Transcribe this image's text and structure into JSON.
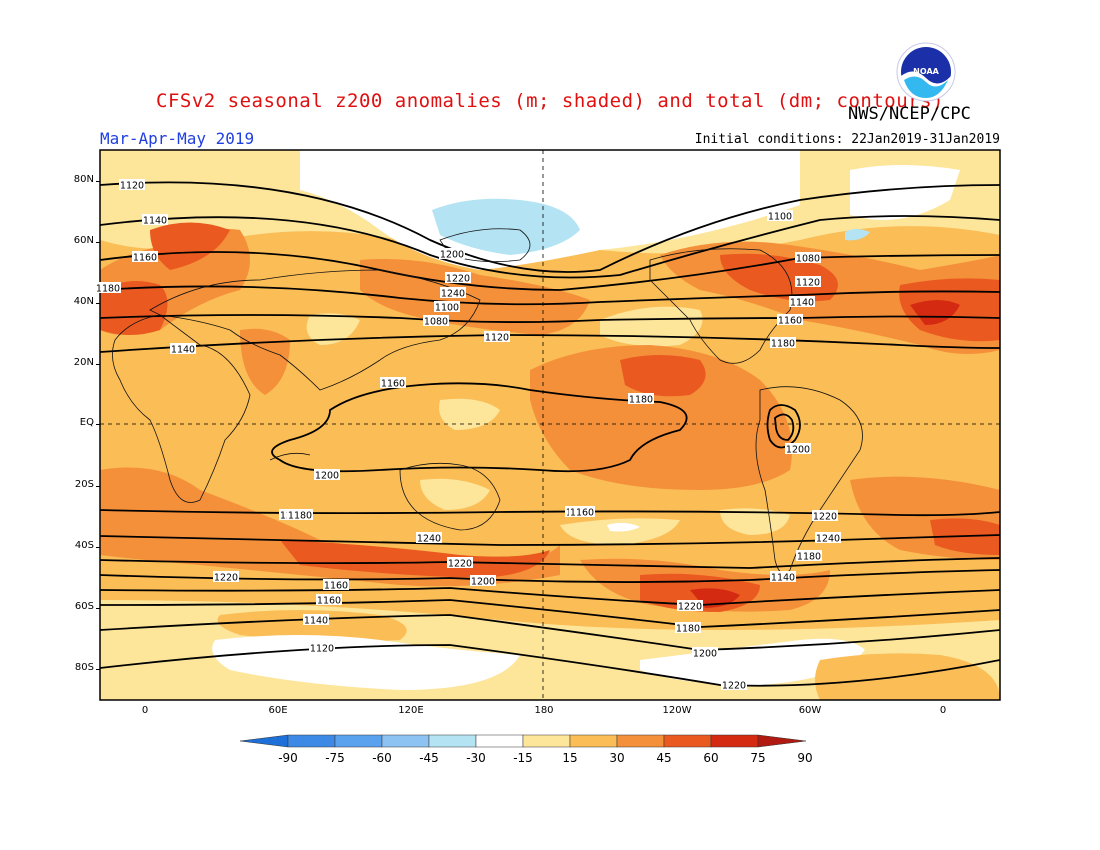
{
  "title": "CFSv2 seasonal z200 anomalies (m; shaded) and total (dm; contours)",
  "credit": "NWS/NCEP/CPC",
  "logo_text": "NOAA",
  "season": "Mar-Apr-May 2019",
  "initial_conditions": "Initial conditions: 22Jan2019-31Jan2019",
  "map": {
    "lat_labels": [
      "80N",
      "60N",
      "40N",
      "20N",
      "EQ",
      "20S",
      "40S",
      "60S",
      "80S"
    ],
    "lon_labels": [
      "0",
      "60E",
      "120E",
      "180",
      "120W",
      "60W",
      "0"
    ],
    "contour_labels": [
      "1120",
      "1140",
      "1160",
      "1180",
      "1200",
      "1220",
      "1240",
      "1100",
      "1080",
      "1120",
      "1140",
      "1160",
      "1180",
      "1200",
      "1220",
      "1240",
      "1240",
      "1220",
      "1220",
      "1200",
      "1160",
      "1160",
      "1140",
      "1120",
      "1100",
      "1080",
      "1120",
      "1140",
      "1160",
      "1180",
      "1200",
      "1220",
      "1240",
      "1180",
      "1140",
      "1220",
      "1180",
      "1200",
      "1220",
      "1160",
      "1180",
      "1140",
      "1120",
      "1100",
      "1080"
    ]
  },
  "colorbar": {
    "labels": [
      "-90",
      "-75",
      "-60",
      "-45",
      "-30",
      "-15",
      "15",
      "30",
      "45",
      "60",
      "75",
      "90"
    ],
    "colors": [
      "#1e6fd8",
      "#3c8ae6",
      "#5ba2ee",
      "#8cc3f2",
      "#b4e4f4",
      "#ffffff",
      "#fde59a",
      "#fbbd55",
      "#f4903a",
      "#ea5a20",
      "#d42a12",
      "#b01a10"
    ]
  }
}
